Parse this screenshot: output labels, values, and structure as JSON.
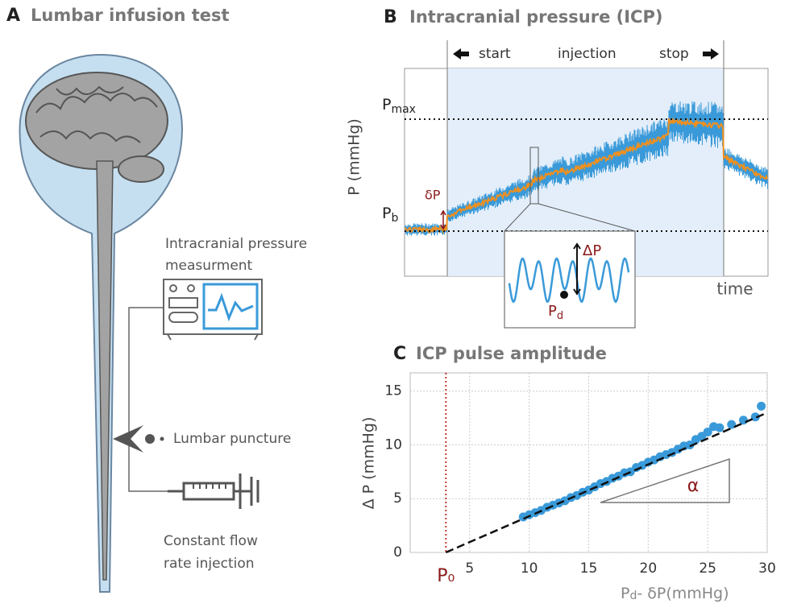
{
  "panel_a": {
    "letter": "A",
    "title": "Lumbar infusion test",
    "monitor_label_1": "Intracranial pressure",
    "monitor_label_2": "measurment",
    "puncture_label": "Lumbar puncture",
    "injection_label_1": "Constant flow",
    "injection_label_2": "rate injection"
  },
  "panel_b": {
    "letter": "B",
    "title": "Intracranial pressure (ICP)",
    "start": "start",
    "injection": "injection",
    "stop": "stop",
    "pmax": {
      "main": "P",
      "sub": "max"
    },
    "pb": {
      "main": "P",
      "sub": "b"
    },
    "dp": "δP",
    "ylabel": "P (mmHg)",
    "xlabel": "time",
    "inset_dp": "ΔP",
    "inset_pd": {
      "main": "P",
      "sub": "d"
    }
  },
  "chart_data": {
    "type": "scatter",
    "letter": "C",
    "title": "ICP pulse amplitude",
    "ylabel": "Δ P (mmHg)",
    "xlabel": {
      "main": "P",
      "sub": "d",
      "rest": "- δP(mmHg)"
    },
    "x": [
      9.5,
      10,
      10.5,
      11,
      11.5,
      12,
      12.5,
      13,
      13.5,
      14,
      14.5,
      15,
      15.5,
      16,
      16.5,
      17,
      17.5,
      18,
      18.5,
      19,
      19.5,
      20,
      20.5,
      21,
      21.5,
      22,
      22.5,
      23,
      23.5,
      24,
      24.5,
      25,
      25.5,
      26,
      27,
      28,
      29,
      29.5
    ],
    "values": [
      3.3,
      3.5,
      3.7,
      3.9,
      4.2,
      4.4,
      4.6,
      4.8,
      5.1,
      5.3,
      5.6,
      5.8,
      6.1,
      6.4,
      6.6,
      6.9,
      7.1,
      7.4,
      7.5,
      7.9,
      8.1,
      8.4,
      8.6,
      8.9,
      9.1,
      9.3,
      9.6,
      9.9,
      10.0,
      10.5,
      10.8,
      11.2,
      11.7,
      11.6,
      11.9,
      12.3,
      12.6,
      13.6
    ],
    "color": "#3a9ad9",
    "fit": {
      "x": [
        3,
        30
      ],
      "values": [
        0,
        13
      ]
    },
    "p0": 3,
    "p0_label": "P₀",
    "slope_label": "α",
    "xlim": [
      0,
      30
    ],
    "ylim": [
      0,
      16.7
    ],
    "xticks": [
      5,
      10,
      15,
      20,
      25,
      30
    ],
    "yticks": [
      0,
      5,
      10,
      15
    ],
    "grid": true
  }
}
